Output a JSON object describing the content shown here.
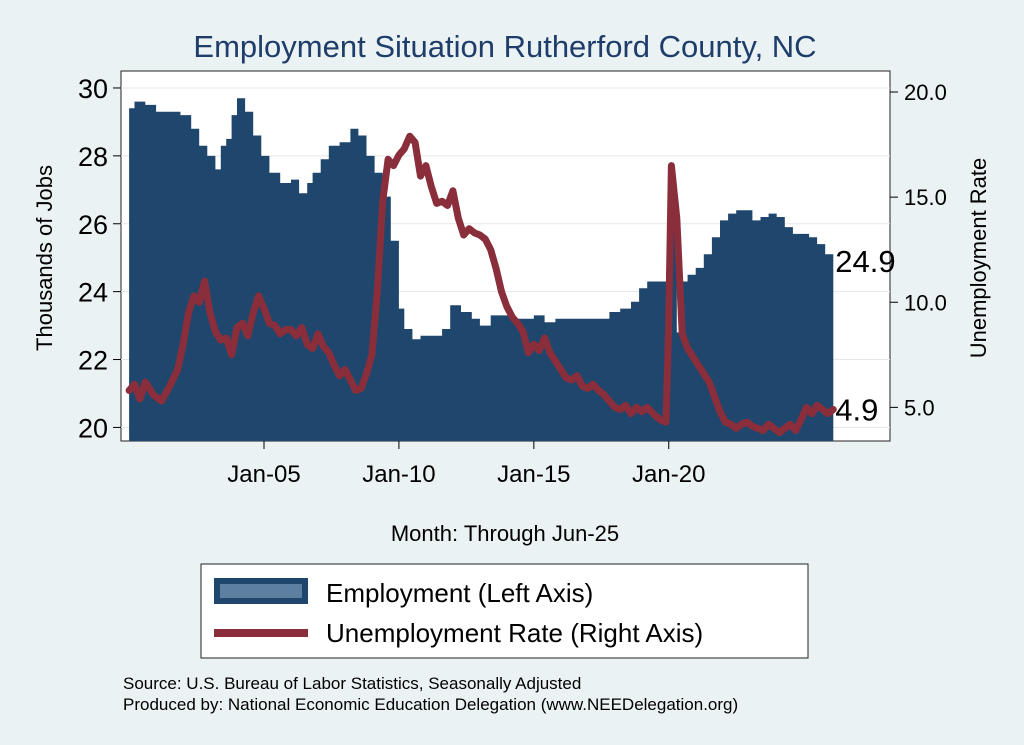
{
  "chart_data": {
    "type": "area+line",
    "title": "Employment Situation Rutherford  County, NC",
    "xlabel": "Month: Through Jun-25",
    "ylabel_left": "Thousands of Jobs",
    "ylabel_right": "Unemployment Rate",
    "x_range": [
      1999.7,
      2028.2
    ],
    "ylim_left": [
      19.6,
      30.5
    ],
    "ylim_right": [
      3.4,
      21.0
    ],
    "x_ticks": [
      {
        "x": 2005.0,
        "label": "Jan-05"
      },
      {
        "x": 2010.0,
        "label": "Jan-10"
      },
      {
        "x": 2015.0,
        "label": "Jan-15"
      },
      {
        "x": 2020.0,
        "label": "Jan-20"
      }
    ],
    "y_ticks_left": [
      "20",
      "22",
      "24",
      "26",
      "28",
      "30"
    ],
    "y_ticks_right": [
      "5.0",
      "10.0",
      "15.0",
      "20.0"
    ],
    "grid": true,
    "legend_position": "bottom",
    "series": [
      {
        "name": "Employment (Left Axis)",
        "axis": "left",
        "kind": "area",
        "color": "#1f466c",
        "points": [
          [
            2000.0,
            29.4
          ],
          [
            2000.2,
            29.6
          ],
          [
            2000.6,
            29.5
          ],
          [
            2001.0,
            29.3
          ],
          [
            2001.5,
            29.3
          ],
          [
            2001.9,
            29.2
          ],
          [
            2002.3,
            28.8
          ],
          [
            2002.6,
            28.3
          ],
          [
            2002.9,
            28.0
          ],
          [
            2003.2,
            27.6
          ],
          [
            2003.4,
            28.3
          ],
          [
            2003.6,
            28.5
          ],
          [
            2003.8,
            29.2
          ],
          [
            2004.0,
            29.7
          ],
          [
            2004.3,
            29.3
          ],
          [
            2004.6,
            28.6
          ],
          [
            2004.9,
            28.0
          ],
          [
            2005.2,
            27.5
          ],
          [
            2005.6,
            27.2
          ],
          [
            2006.0,
            27.3
          ],
          [
            2006.3,
            26.9
          ],
          [
            2006.6,
            27.2
          ],
          [
            2006.8,
            27.5
          ],
          [
            2007.1,
            27.9
          ],
          [
            2007.4,
            28.3
          ],
          [
            2007.8,
            28.4
          ],
          [
            2008.2,
            28.8
          ],
          [
            2008.5,
            28.6
          ],
          [
            2008.8,
            28.0
          ],
          [
            2009.1,
            27.5
          ],
          [
            2009.4,
            26.8
          ],
          [
            2009.7,
            25.5
          ],
          [
            2010.0,
            23.5
          ],
          [
            2010.2,
            22.9
          ],
          [
            2010.5,
            22.6
          ],
          [
            2010.8,
            22.7
          ],
          [
            2011.2,
            22.7
          ],
          [
            2011.6,
            22.9
          ],
          [
            2011.9,
            23.6
          ],
          [
            2012.3,
            23.4
          ],
          [
            2012.7,
            23.2
          ],
          [
            2013.0,
            23.0
          ],
          [
            2013.4,
            23.3
          ],
          [
            2013.8,
            23.3
          ],
          [
            2014.2,
            23.2
          ],
          [
            2014.6,
            23.2
          ],
          [
            2015.0,
            23.3
          ],
          [
            2015.4,
            23.1
          ],
          [
            2015.8,
            23.2
          ],
          [
            2016.2,
            23.2
          ],
          [
            2016.6,
            23.2
          ],
          [
            2017.0,
            23.2
          ],
          [
            2017.4,
            23.2
          ],
          [
            2017.8,
            23.4
          ],
          [
            2018.2,
            23.5
          ],
          [
            2018.6,
            23.7
          ],
          [
            2018.9,
            24.1
          ],
          [
            2019.2,
            24.3
          ],
          [
            2019.6,
            24.3
          ],
          [
            2019.9,
            24.6
          ],
          [
            2020.0,
            26.4
          ],
          [
            2020.15,
            26.4
          ],
          [
            2020.3,
            22.8
          ],
          [
            2020.5,
            24.3
          ],
          [
            2020.7,
            24.5
          ],
          [
            2021.0,
            24.7
          ],
          [
            2021.3,
            25.1
          ],
          [
            2021.6,
            25.6
          ],
          [
            2021.9,
            26.1
          ],
          [
            2022.2,
            26.3
          ],
          [
            2022.5,
            26.4
          ],
          [
            2022.8,
            26.4
          ],
          [
            2023.1,
            26.1
          ],
          [
            2023.4,
            26.2
          ],
          [
            2023.7,
            26.3
          ],
          [
            2024.0,
            26.2
          ],
          [
            2024.3,
            25.9
          ],
          [
            2024.6,
            25.7
          ],
          [
            2024.9,
            25.7
          ],
          [
            2025.2,
            25.6
          ],
          [
            2025.5,
            25.4
          ],
          [
            2025.8,
            25.1
          ],
          [
            2026.1,
            24.9
          ]
        ]
      },
      {
        "name": "Unemployment Rate (Right Axis)",
        "axis": "right",
        "kind": "line",
        "color": "#8a2e3b",
        "points": [
          [
            2000.0,
            5.8
          ],
          [
            2000.2,
            6.1
          ],
          [
            2000.4,
            5.4
          ],
          [
            2000.6,
            6.2
          ],
          [
            2000.9,
            5.6
          ],
          [
            2001.2,
            5.3
          ],
          [
            2001.5,
            6.0
          ],
          [
            2001.8,
            6.8
          ],
          [
            2002.0,
            8.0
          ],
          [
            2002.2,
            9.5
          ],
          [
            2002.4,
            10.3
          ],
          [
            2002.6,
            10.0
          ],
          [
            2002.8,
            11.0
          ],
          [
            2003.0,
            9.5
          ],
          [
            2003.2,
            8.6
          ],
          [
            2003.4,
            8.2
          ],
          [
            2003.6,
            8.3
          ],
          [
            2003.8,
            7.5
          ],
          [
            2004.0,
            8.8
          ],
          [
            2004.2,
            9.0
          ],
          [
            2004.4,
            8.4
          ],
          [
            2004.6,
            9.5
          ],
          [
            2004.8,
            10.3
          ],
          [
            2005.0,
            9.7
          ],
          [
            2005.2,
            9.0
          ],
          [
            2005.4,
            8.9
          ],
          [
            2005.6,
            8.5
          ],
          [
            2005.8,
            8.7
          ],
          [
            2006.0,
            8.7
          ],
          [
            2006.2,
            8.4
          ],
          [
            2006.4,
            8.8
          ],
          [
            2006.6,
            8.0
          ],
          [
            2006.8,
            7.8
          ],
          [
            2007.0,
            8.5
          ],
          [
            2007.2,
            7.9
          ],
          [
            2007.4,
            7.6
          ],
          [
            2007.6,
            7.0
          ],
          [
            2007.8,
            6.5
          ],
          [
            2008.0,
            6.8
          ],
          [
            2008.2,
            6.3
          ],
          [
            2008.4,
            5.8
          ],
          [
            2008.6,
            5.9
          ],
          [
            2008.8,
            6.6
          ],
          [
            2009.0,
            7.5
          ],
          [
            2009.2,
            10.5
          ],
          [
            2009.4,
            14.8
          ],
          [
            2009.6,
            16.8
          ],
          [
            2009.8,
            16.5
          ],
          [
            2010.0,
            17.0
          ],
          [
            2010.2,
            17.3
          ],
          [
            2010.4,
            17.9
          ],
          [
            2010.6,
            17.6
          ],
          [
            2010.8,
            16.0
          ],
          [
            2011.0,
            16.5
          ],
          [
            2011.2,
            15.5
          ],
          [
            2011.4,
            14.7
          ],
          [
            2011.6,
            14.8
          ],
          [
            2011.8,
            14.6
          ],
          [
            2012.0,
            15.3
          ],
          [
            2012.2,
            14.0
          ],
          [
            2012.4,
            13.2
          ],
          [
            2012.6,
            13.5
          ],
          [
            2012.8,
            13.3
          ],
          [
            2013.0,
            13.2
          ],
          [
            2013.2,
            13.0
          ],
          [
            2013.4,
            12.5
          ],
          [
            2013.6,
            11.6
          ],
          [
            2013.8,
            10.5
          ],
          [
            2014.0,
            9.8
          ],
          [
            2014.2,
            9.3
          ],
          [
            2014.4,
            9.0
          ],
          [
            2014.6,
            8.6
          ],
          [
            2014.8,
            7.6
          ],
          [
            2015.0,
            8.0
          ],
          [
            2015.2,
            7.7
          ],
          [
            2015.4,
            8.3
          ],
          [
            2015.6,
            7.6
          ],
          [
            2015.8,
            7.2
          ],
          [
            2016.0,
            6.8
          ],
          [
            2016.2,
            6.4
          ],
          [
            2016.4,
            6.3
          ],
          [
            2016.6,
            6.5
          ],
          [
            2016.8,
            6.0
          ],
          [
            2017.0,
            5.9
          ],
          [
            2017.2,
            6.1
          ],
          [
            2017.4,
            5.8
          ],
          [
            2017.6,
            5.6
          ],
          [
            2017.8,
            5.3
          ],
          [
            2018.0,
            5.0
          ],
          [
            2018.2,
            4.9
          ],
          [
            2018.4,
            5.1
          ],
          [
            2018.6,
            4.7
          ],
          [
            2018.8,
            5.0
          ],
          [
            2019.0,
            4.8
          ],
          [
            2019.2,
            5.0
          ],
          [
            2019.5,
            4.6
          ],
          [
            2019.7,
            4.4
          ],
          [
            2019.9,
            4.3
          ],
          [
            2020.0,
            9.0
          ],
          [
            2020.1,
            16.5
          ],
          [
            2020.3,
            14.0
          ],
          [
            2020.5,
            8.5
          ],
          [
            2020.7,
            7.8
          ],
          [
            2020.9,
            7.4
          ],
          [
            2021.1,
            7.0
          ],
          [
            2021.3,
            6.6
          ],
          [
            2021.5,
            6.2
          ],
          [
            2021.7,
            5.5
          ],
          [
            2021.9,
            4.8
          ],
          [
            2022.1,
            4.3
          ],
          [
            2022.3,
            4.2
          ],
          [
            2022.5,
            4.0
          ],
          [
            2022.7,
            4.2
          ],
          [
            2022.9,
            4.3
          ],
          [
            2023.1,
            4.1
          ],
          [
            2023.3,
            4.0
          ],
          [
            2023.5,
            3.9
          ],
          [
            2023.7,
            4.2
          ],
          [
            2023.9,
            4.0
          ],
          [
            2024.1,
            3.8
          ],
          [
            2024.3,
            4.0
          ],
          [
            2024.5,
            4.2
          ],
          [
            2024.7,
            3.9
          ],
          [
            2024.9,
            4.4
          ],
          [
            2025.1,
            5.0
          ],
          [
            2025.3,
            4.7
          ],
          [
            2025.5,
            5.1
          ],
          [
            2025.7,
            4.9
          ],
          [
            2025.9,
            4.7
          ],
          [
            2026.1,
            4.9
          ]
        ]
      }
    ],
    "annotations": [
      {
        "label": "24.9",
        "x": 2026.1,
        "y": 24.9,
        "axis": "left"
      },
      {
        "label": "4.9",
        "x": 2026.1,
        "y": 4.9,
        "axis": "right"
      }
    ],
    "legend": [
      "Employment (Left Axis)",
      "Unemployment Rate (Right Axis)"
    ]
  },
  "footer": {
    "source": "Source: U.S. Bureau of Labor Statistics, Seasonally Adjusted",
    "produced_by": "Produced by: National Economic Education Delegation (www.NEEDelegation.org)"
  },
  "colors": {
    "background": "#eaf2f3",
    "plot_bg": "#ffffff",
    "employment": "#1f466c",
    "unemployment": "#8a2e3b",
    "title": "#1f3d6b",
    "grid": "#e3e8ea"
  }
}
